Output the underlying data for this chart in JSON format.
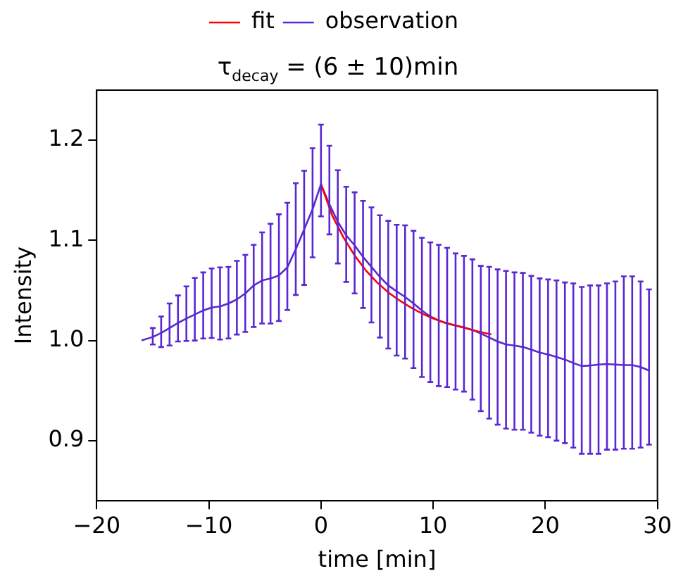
{
  "chart_data": {
    "type": "line",
    "title": "τ$_{decay}$ = (6 ± 10)min",
    "xlabel": "time [min]",
    "ylabel": "Intensity",
    "xlim": [
      -20,
      30
    ],
    "xticks": [
      -20,
      -10,
      0,
      10,
      20,
      30
    ],
    "ylim": [
      0.84,
      1.25
    ],
    "yticks": [
      0.9,
      {
        "value": 1,
        "label": "1.0"
      },
      1.1,
      1.2
    ],
    "legend": "top",
    "grid": false,
    "marker": "none",
    "line_style": "solid",
    "series": [
      {
        "name": "fit",
        "color": "#ff0000",
        "x": [
          0,
          1,
          2,
          3,
          4,
          5,
          6,
          7,
          8,
          9,
          10,
          11,
          12,
          13,
          14,
          15.2
        ],
        "values": [
          1.156,
          1.125,
          1.103,
          1.085,
          1.07,
          1.058,
          1.048,
          1.04,
          1.033,
          1.027,
          1.022,
          1.018,
          1.015,
          1.012,
          1.009,
          1.006
        ]
      },
      {
        "name": "observation",
        "color": "#5a28d2",
        "x": [
          -16,
          -15,
          -14.25,
          -13.5,
          -12.75,
          -12,
          -11.25,
          -10.5,
          -9.75,
          -9,
          -8.25,
          -7.5,
          -6.75,
          -6,
          -5.25,
          -4.5,
          -3.75,
          -3,
          -2.25,
          -1.5,
          -0.75,
          0,
          0.75,
          1.5,
          2.25,
          3,
          3.75,
          4.5,
          5.25,
          6,
          6.75,
          7.5,
          8.25,
          9,
          9.75,
          10.5,
          11.25,
          12,
          12.75,
          13.5,
          14.25,
          15,
          15.75,
          16.5,
          17.25,
          18,
          18.75,
          19.5,
          20.25,
          21,
          21.75,
          22.5,
          23.25,
          24,
          24.75,
          25.5,
          26.25,
          27,
          27.75,
          28.5,
          29.25
        ],
        "values": [
          1.0,
          1.0035,
          1.0075,
          1.0125,
          1.0175,
          1.022,
          1.026,
          1.03,
          1.033,
          1.034,
          1.037,
          1.041,
          1.047,
          1.055,
          1.06,
          1.062,
          1.065,
          1.073,
          1.091,
          1.111,
          1.131,
          1.156,
          1.136,
          1.1185,
          1.105,
          1.095,
          1.0835,
          1.0735,
          1.0635,
          1.055,
          1.049,
          1.0435,
          1.037,
          1.03,
          1.024,
          1.02,
          1.017,
          1.015,
          1.013,
          1.0105,
          1.007,
          1.003,
          0.999,
          0.996,
          0.995,
          0.9935,
          0.991,
          0.988,
          0.986,
          0.9835,
          0.981,
          0.9775,
          0.9745,
          0.975,
          0.976,
          0.9765,
          0.976,
          0.9755,
          0.9755,
          0.9735,
          0.97
        ],
        "errors": [
          null,
          [
            0.996,
            1.0125
          ],
          [
            0.9935,
            1.024
          ],
          [
            0.995,
            1.037
          ],
          [
            0.999,
            1.045
          ],
          [
            0.9995,
            1.054
          ],
          [
            1.0,
            1.0625
          ],
          [
            1.002,
            1.068
          ],
          [
            1.0025,
            1.072
          ],
          [
            1.001,
            1.073
          ],
          [
            1.002,
            1.0735
          ],
          [
            1.006,
            1.0795
          ],
          [
            1.0085,
            1.0855
          ],
          [
            1.0135,
            1.0955
          ],
          [
            1.017,
            1.108
          ],
          [
            1.017,
            1.1165
          ],
          [
            1.0195,
            1.126
          ],
          [
            1.0305,
            1.1375
          ],
          [
            1.0455,
            1.157
          ],
          [
            1.0555,
            1.1695
          ],
          [
            1.083,
            1.192
          ],
          [
            1.124,
            1.2155
          ],
          [
            1.106,
            1.1945
          ],
          [
            1.077,
            1.17
          ],
          [
            1.0585,
            1.1535
          ],
          [
            1.047,
            1.148
          ],
          [
            1.0325,
            1.1395
          ],
          [
            1.018,
            1.133
          ],
          [
            1.003,
            1.125
          ],
          [
            0.992,
            1.1195
          ],
          [
            0.985,
            1.1155
          ],
          [
            0.982,
            1.115
          ],
          [
            0.9725,
            1.1095
          ],
          [
            0.9635,
            1.1025
          ],
          [
            0.9585,
            1.098
          ],
          [
            0.9545,
            1.0955
          ],
          [
            0.9535,
            1.0925
          ],
          [
            0.951,
            1.087
          ],
          [
            0.949,
            1.0845
          ],
          [
            0.941,
            1.081
          ],
          [
            0.9295,
            1.0745
          ],
          [
            0.922,
            1.0735
          ],
          [
            0.916,
            1.071
          ],
          [
            0.912,
            1.0695
          ],
          [
            0.911,
            1.068
          ],
          [
            0.911,
            1.0675
          ],
          [
            0.908,
            1.0645
          ],
          [
            0.905,
            1.062
          ],
          [
            0.9035,
            1.061
          ],
          [
            0.9,
            1.06
          ],
          [
            0.8975,
            1.058
          ],
          [
            0.893,
            1.057
          ],
          [
            0.887,
            1.0535
          ],
          [
            0.887,
            1.055
          ],
          [
            0.887,
            1.055
          ],
          [
            0.891,
            1.057
          ],
          [
            0.891,
            1.059
          ],
          [
            0.892,
            1.064
          ],
          [
            0.892,
            1.064
          ],
          [
            0.893,
            1.059
          ],
          [
            0.896,
            1.051
          ]
        ]
      }
    ]
  }
}
